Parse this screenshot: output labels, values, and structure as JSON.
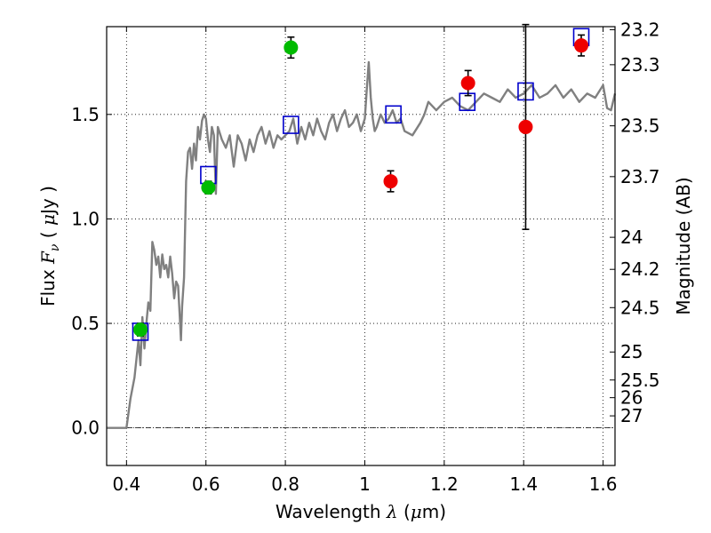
{
  "chart_data": {
    "type": "scatter",
    "title": "",
    "xlabel": {
      "prefix": "Wavelength",
      "symbol": "λ",
      "unit_open": "(",
      "unit_mu": "μ",
      "unit_rest": "m)"
    },
    "ylabel": {
      "prefix": "Flux",
      "symbol": "F",
      "sub": "ν",
      "unit_open": "(",
      "unit_mu": "μ",
      "unit_rest": "Jy )"
    },
    "y2label": "Magnitude (AB)",
    "xlim": [
      0.35,
      1.63
    ],
    "ylim": [
      -0.18,
      1.92
    ],
    "grid": true,
    "x_ticks": [
      {
        "value": 0.4,
        "label": "0.4"
      },
      {
        "value": 0.6,
        "label": "0.6"
      },
      {
        "value": 0.8,
        "label": "0.8"
      },
      {
        "value": 1.0,
        "label": "1"
      },
      {
        "value": 1.2,
        "label": "1.2"
      },
      {
        "value": 1.4,
        "label": "1.4"
      },
      {
        "value": 1.6,
        "label": "1.6"
      }
    ],
    "y_ticks": [
      {
        "value": 0.0,
        "label": "0.0"
      },
      {
        "value": 0.5,
        "label": "0.5"
      },
      {
        "value": 1.0,
        "label": "1.0"
      },
      {
        "value": 1.5,
        "label": "1.5"
      }
    ],
    "y2_ticks": [
      {
        "value": 23.2,
        "label": "23.2"
      },
      {
        "value": 23.3,
        "label": "23.3"
      },
      {
        "value": 23.5,
        "label": "23.5"
      },
      {
        "value": 23.7,
        "label": "23.7"
      },
      {
        "value": 24,
        "label": "24"
      },
      {
        "value": 24.2,
        "label": "24.2"
      },
      {
        "value": 24.5,
        "label": "24.5"
      },
      {
        "value": 25,
        "label": "25"
      },
      {
        "value": 25.5,
        "label": "25.5"
      },
      {
        "value": 26,
        "label": "26"
      },
      {
        "value": 27,
        "label": "27"
      }
    ],
    "model_spectrum": {
      "color": "#808080",
      "x": [
        0.35,
        0.39,
        0.4,
        0.41,
        0.42,
        0.43,
        0.435,
        0.44,
        0.445,
        0.45,
        0.455,
        0.46,
        0.465,
        0.47,
        0.475,
        0.48,
        0.485,
        0.49,
        0.495,
        0.5,
        0.505,
        0.51,
        0.515,
        0.52,
        0.525,
        0.53,
        0.535,
        0.537,
        0.54,
        0.545,
        0.55,
        0.555,
        0.56,
        0.565,
        0.57,
        0.575,
        0.58,
        0.585,
        0.59,
        0.595,
        0.6,
        0.605,
        0.61,
        0.615,
        0.62,
        0.625,
        0.63,
        0.64,
        0.65,
        0.66,
        0.67,
        0.68,
        0.69,
        0.7,
        0.71,
        0.72,
        0.73,
        0.74,
        0.75,
        0.76,
        0.77,
        0.78,
        0.79,
        0.8,
        0.81,
        0.82,
        0.83,
        0.84,
        0.85,
        0.86,
        0.87,
        0.88,
        0.89,
        0.9,
        0.91,
        0.92,
        0.93,
        0.94,
        0.95,
        0.96,
        0.97,
        0.98,
        0.99,
        1.0,
        1.005,
        1.01,
        1.015,
        1.02,
        1.025,
        1.03,
        1.04,
        1.05,
        1.06,
        1.07,
        1.08,
        1.09,
        1.1,
        1.12,
        1.14,
        1.15,
        1.16,
        1.18,
        1.2,
        1.22,
        1.24,
        1.26,
        1.28,
        1.3,
        1.32,
        1.34,
        1.36,
        1.38,
        1.4,
        1.42,
        1.44,
        1.46,
        1.48,
        1.5,
        1.52,
        1.54,
        1.56,
        1.58,
        1.6,
        1.61,
        1.62,
        1.63
      ],
      "y": [
        0.0,
        0.0,
        0.0,
        0.14,
        0.24,
        0.42,
        0.3,
        0.53,
        0.38,
        0.5,
        0.6,
        0.56,
        0.89,
        0.85,
        0.78,
        0.82,
        0.72,
        0.83,
        0.76,
        0.78,
        0.72,
        0.82,
        0.74,
        0.62,
        0.7,
        0.68,
        0.5,
        0.42,
        0.58,
        0.72,
        1.18,
        1.32,
        1.34,
        1.24,
        1.36,
        1.28,
        1.44,
        1.38,
        1.47,
        1.5,
        1.48,
        1.38,
        1.32,
        1.44,
        1.4,
        1.12,
        1.44,
        1.38,
        1.34,
        1.4,
        1.25,
        1.4,
        1.36,
        1.28,
        1.38,
        1.32,
        1.4,
        1.44,
        1.36,
        1.42,
        1.34,
        1.4,
        1.38,
        1.4,
        1.42,
        1.48,
        1.36,
        1.44,
        1.38,
        1.46,
        1.4,
        1.48,
        1.42,
        1.38,
        1.46,
        1.5,
        1.42,
        1.48,
        1.52,
        1.44,
        1.46,
        1.5,
        1.42,
        1.48,
        1.62,
        1.75,
        1.58,
        1.48,
        1.42,
        1.44,
        1.5,
        1.46,
        1.48,
        1.52,
        1.46,
        1.48,
        1.42,
        1.4,
        1.46,
        1.5,
        1.56,
        1.52,
        1.56,
        1.58,
        1.54,
        1.52,
        1.56,
        1.6,
        1.58,
        1.56,
        1.62,
        1.58,
        1.6,
        1.64,
        1.58,
        1.6,
        1.64,
        1.58,
        1.62,
        1.56,
        1.6,
        1.58,
        1.64,
        1.53,
        1.52,
        1.6
      ]
    },
    "series": [
      {
        "marker": "circle",
        "color": "#00bb00",
        "points": [
          {
            "x": 0.435,
            "y": 0.47,
            "err": 0.03
          },
          {
            "x": 0.606,
            "y": 1.15,
            "err": 0.03
          },
          {
            "x": 0.814,
            "y": 1.82,
            "err": 0.05
          }
        ]
      },
      {
        "marker": "circle",
        "color": "#ee0000",
        "points": [
          {
            "x": 1.065,
            "y": 1.18,
            "err": 0.05
          },
          {
            "x": 1.26,
            "y": 1.65,
            "err": 0.06
          },
          {
            "x": 1.405,
            "y": 1.44,
            "err": 0.49
          },
          {
            "x": 1.545,
            "y": 1.83,
            "err": 0.05
          }
        ]
      },
      {
        "marker": "square",
        "color": "#0000cc",
        "points": [
          {
            "x": 0.435,
            "y": 0.46
          },
          {
            "x": 0.606,
            "y": 1.21
          },
          {
            "x": 0.814,
            "y": 1.45
          },
          {
            "x": 1.072,
            "y": 1.5
          },
          {
            "x": 1.258,
            "y": 1.56
          },
          {
            "x": 1.405,
            "y": 1.61
          },
          {
            "x": 1.545,
            "y": 1.87
          }
        ]
      }
    ]
  }
}
